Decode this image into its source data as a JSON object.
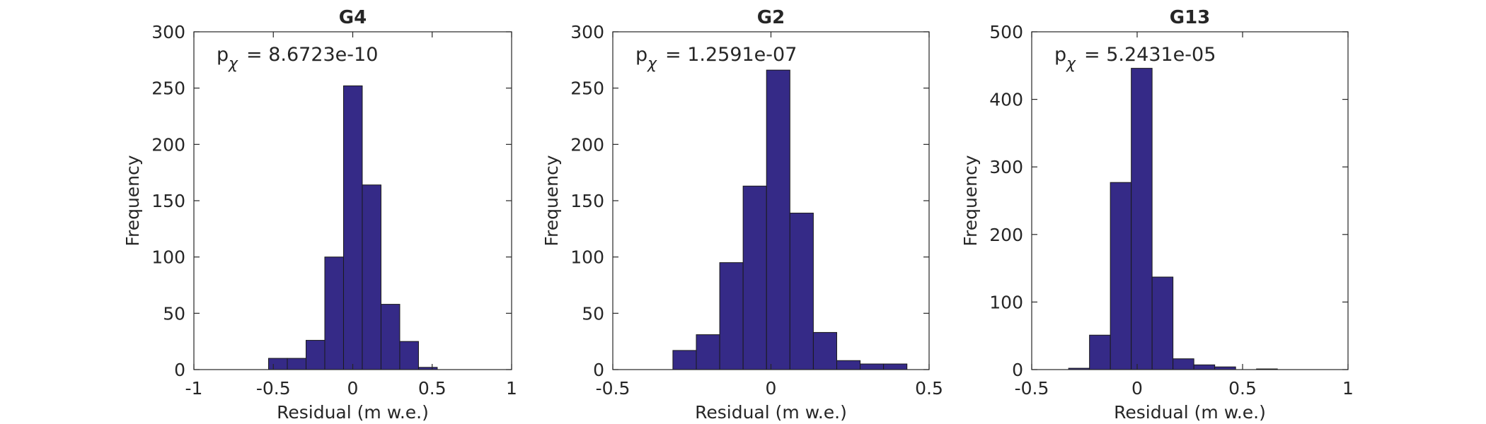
{
  "figure_colors": {
    "bar_fill": "#352a87",
    "bar_edge": "#1a1a1a",
    "axis": "#262626",
    "background": "#ffffff"
  },
  "chart_data": [
    {
      "type": "bar",
      "subtype": "histogram",
      "title": "G4",
      "xlabel": "Residual (m w.e.)",
      "ylabel": "Frequency",
      "annotation": {
        "prefix": "p",
        "subscript": "χ",
        "text": "= 8.6723e-10"
      },
      "xlim": [
        -1,
        1
      ],
      "ylim": [
        0,
        300
      ],
      "xticks": [
        -1,
        -0.5,
        0,
        0.5,
        1
      ],
      "xtick_labels": [
        "-1",
        "-0.5",
        "0",
        "0.5",
        "1"
      ],
      "yticks": [
        0,
        50,
        100,
        150,
        200,
        250,
        300
      ],
      "ytick_labels": [
        "0",
        "50",
        "100",
        "150",
        "200",
        "250",
        "300"
      ],
      "bin_edges": [
        -0.53,
        -0.412,
        -0.294,
        -0.176,
        -0.058,
        0.06,
        0.178,
        0.296,
        0.414,
        0.532
      ],
      "values": [
        10,
        10,
        26,
        100,
        252,
        164,
        58,
        25,
        2,
        3
      ],
      "grid": false
    },
    {
      "type": "bar",
      "subtype": "histogram",
      "title": "G2",
      "xlabel": "Residual (m w.e.)",
      "ylabel": "Frequency",
      "annotation": {
        "prefix": "p",
        "subscript": "χ",
        "text": "= 1.2591e-07"
      },
      "xlim": [
        -0.5,
        0.5
      ],
      "ylim": [
        0,
        300
      ],
      "xticks": [
        -0.5,
        0,
        0.5
      ],
      "xtick_labels": [
        "-0.5",
        "0",
        "0.5"
      ],
      "yticks": [
        0,
        50,
        100,
        150,
        200,
        250,
        300
      ],
      "ytick_labels": [
        "0",
        "50",
        "100",
        "150",
        "200",
        "250",
        "300"
      ],
      "bin_edges": [
        -0.31,
        -0.236,
        -0.162,
        -0.088,
        -0.014,
        0.06,
        0.134,
        0.208,
        0.282,
        0.356,
        0.43
      ],
      "values": [
        17,
        31,
        95,
        163,
        266,
        139,
        33,
        8,
        5,
        5
      ],
      "grid": false
    },
    {
      "type": "bar",
      "subtype": "histogram",
      "title": "G13",
      "xlabel": "Residual (m w.e.)",
      "ylabel": "Frequency",
      "annotation": {
        "prefix": "p",
        "subscript": "χ",
        "text": "= 5.2431e-05"
      },
      "xlim": [
        -0.5,
        1
      ],
      "ylim": [
        0,
        500
      ],
      "xticks": [
        -0.5,
        0,
        0.5,
        1
      ],
      "xtick_labels": [
        "-0.5",
        "0",
        "0.5",
        "1"
      ],
      "yticks": [
        0,
        100,
        200,
        300,
        400,
        500
      ],
      "ytick_labels": [
        "0",
        "100",
        "200",
        "300",
        "400",
        "500"
      ],
      "bin_edges": [
        -0.325,
        -0.226,
        -0.127,
        -0.028,
        0.071,
        0.17,
        0.269,
        0.368,
        0.467,
        0.566,
        0.665
      ],
      "values": [
        2,
        51,
        277,
        446,
        137,
        16,
        7,
        4,
        0,
        1
      ],
      "grid": false
    }
  ]
}
